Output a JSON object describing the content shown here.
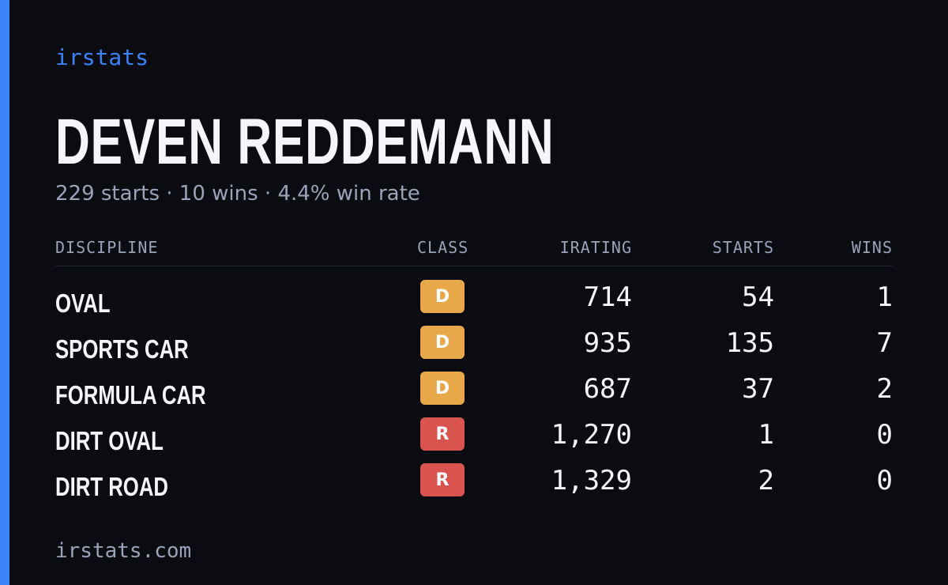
{
  "brand": "irstats",
  "driver": {
    "name": "DEVEN REDDEMANN",
    "summary": "229 starts · 10 wins · 4.4% win rate"
  },
  "table": {
    "headers": {
      "discipline": "DISCIPLINE",
      "class": "CLASS",
      "irating": "IRATING",
      "starts": "STARTS",
      "wins": "WINS"
    },
    "rows": [
      {
        "discipline": "OVAL",
        "class": "D",
        "class_color": "#e8a84a",
        "irating": "714",
        "starts": "54",
        "wins": "1"
      },
      {
        "discipline": "SPORTS CAR",
        "class": "D",
        "class_color": "#e8a84a",
        "irating": "935",
        "starts": "135",
        "wins": "7"
      },
      {
        "discipline": "FORMULA CAR",
        "class": "D",
        "class_color": "#e8a84a",
        "irating": "687",
        "starts": "37",
        "wins": "2"
      },
      {
        "discipline": "DIRT OVAL",
        "class": "R",
        "class_color": "#d9534f",
        "irating": "1,270",
        "starts": "1",
        "wins": "0"
      },
      {
        "discipline": "DIRT ROAD",
        "class": "R",
        "class_color": "#d9534f",
        "irating": "1,329",
        "starts": "2",
        "wins": "0"
      }
    ]
  },
  "footer": "irstats.com",
  "colors": {
    "background": "#0a0c12",
    "accent": "#3b82f6",
    "text_primary": "#f4f6fa",
    "text_muted": "#9aa3b8",
    "class_d": "#e8a84a",
    "class_r": "#d9534f"
  }
}
